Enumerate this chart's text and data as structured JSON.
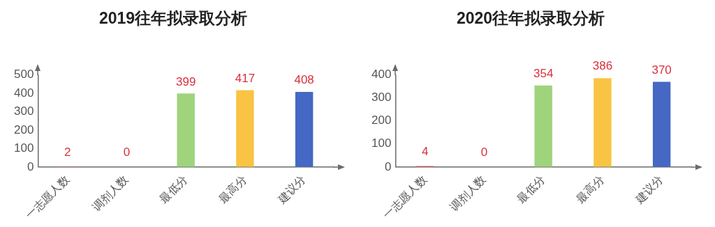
{
  "chart_data": [
    {
      "type": "bar",
      "title": "2019往年拟录取分析",
      "categories": [
        "一志愿人数",
        "调剂人数",
        "最低分",
        "最高分",
        "建议分"
      ],
      "values": [
        2,
        0,
        399,
        417,
        408
      ],
      "colors": [
        "#e05050",
        "#e05050",
        "#9fd47c",
        "#f9c443",
        "#4468c4"
      ],
      "ylim": [
        0,
        500
      ],
      "yticks": [
        0,
        100,
        200,
        300,
        400,
        500
      ],
      "data_labels": true
    },
    {
      "type": "bar",
      "title": "2020往年拟录取分析",
      "categories": [
        "一志愿人数",
        "调剂人数",
        "最低分",
        "最高分",
        "建议分"
      ],
      "values": [
        4,
        0,
        354,
        386,
        370
      ],
      "colors": [
        "#e05050",
        "#e05050",
        "#9fd47c",
        "#f9c443",
        "#4468c4"
      ],
      "ylim": [
        0,
        400
      ],
      "yticks": [
        0,
        100,
        200,
        300,
        400
      ],
      "data_labels": true
    }
  ]
}
